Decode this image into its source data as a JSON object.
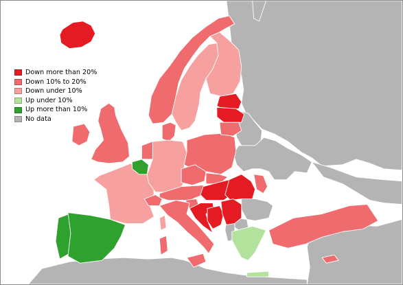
{
  "colors": {
    "sea": "#ffffff",
    "down_more_20": "#e41b23",
    "down_10_20": "#ef6b6d",
    "down_under_10": "#f7a0a0",
    "up_under_10": "#b2e29c",
    "up_more_10": "#2fa12f",
    "no_data": "#b4b4b4",
    "border": "#ffffff"
  },
  "legend": {
    "items": [
      {
        "label": "Down more than 20%",
        "color": "#e41b23"
      },
      {
        "label": "Down 10% to 20%",
        "color": "#ef6b6d"
      },
      {
        "label": "Down under 10%",
        "color": "#f7a0a0"
      },
      {
        "label": "Up under 10%",
        "color": "#b2e29c"
      },
      {
        "label": "Up more than 10%",
        "color": "#2fa12f"
      },
      {
        "label": "No data",
        "color": "#b4b4b4"
      }
    ]
  },
  "regions": [
    {
      "id": "iceland",
      "category": "down_more_20"
    },
    {
      "id": "norway",
      "category": "down_10_20"
    },
    {
      "id": "sweden",
      "category": "down_under_10"
    },
    {
      "id": "finland",
      "category": "down_under_10"
    },
    {
      "id": "denmark",
      "category": "down_10_20"
    },
    {
      "id": "ireland",
      "category": "down_10_20"
    },
    {
      "id": "united-kingdom",
      "category": "down_10_20"
    },
    {
      "id": "france",
      "category": "down_under_10"
    },
    {
      "id": "belgium",
      "category": "up_more_10"
    },
    {
      "id": "netherlands",
      "category": "down_10_20"
    },
    {
      "id": "germany",
      "category": "down_under_10"
    },
    {
      "id": "poland",
      "category": "down_10_20"
    },
    {
      "id": "czech-republic",
      "category": "down_10_20"
    },
    {
      "id": "austria",
      "category": "down_10_20"
    },
    {
      "id": "switzerland",
      "category": "down_10_20"
    },
    {
      "id": "italy",
      "category": "down_10_20"
    },
    {
      "id": "slovakia",
      "category": "down_10_20"
    },
    {
      "id": "hungary",
      "category": "down_more_20"
    },
    {
      "id": "slovenia",
      "category": "down_10_20"
    },
    {
      "id": "croatia",
      "category": "down_more_20"
    },
    {
      "id": "bosnia",
      "category": "down_more_20"
    },
    {
      "id": "serbia",
      "category": "down_more_20"
    },
    {
      "id": "romania",
      "category": "down_more_20"
    },
    {
      "id": "estonia",
      "category": "down_more_20"
    },
    {
      "id": "latvia",
      "category": "down_more_20"
    },
    {
      "id": "lithuania",
      "category": "down_10_20"
    },
    {
      "id": "moldova",
      "category": "down_10_20"
    },
    {
      "id": "greece",
      "category": "up_under_10"
    },
    {
      "id": "spain",
      "category": "up_more_10"
    },
    {
      "id": "portugal",
      "category": "up_more_10"
    },
    {
      "id": "turkey",
      "category": "down_10_20"
    },
    {
      "id": "cyprus",
      "category": "down_10_20"
    },
    {
      "id": "sardinia",
      "category": "down_10_20"
    },
    {
      "id": "corsica",
      "category": "down_under_10"
    },
    {
      "id": "russia",
      "category": "no_data"
    },
    {
      "id": "belarus",
      "category": "no_data"
    },
    {
      "id": "ukraine",
      "category": "no_data"
    },
    {
      "id": "bulgaria",
      "category": "no_data"
    },
    {
      "id": "macedonia",
      "category": "no_data"
    },
    {
      "id": "albania",
      "category": "no_data"
    },
    {
      "id": "north-africa",
      "category": "no_data"
    },
    {
      "id": "middle-east",
      "category": "no_data"
    },
    {
      "id": "caucasus",
      "category": "no_data"
    },
    {
      "id": "novaya-zemlya",
      "category": "no_data"
    }
  ]
}
